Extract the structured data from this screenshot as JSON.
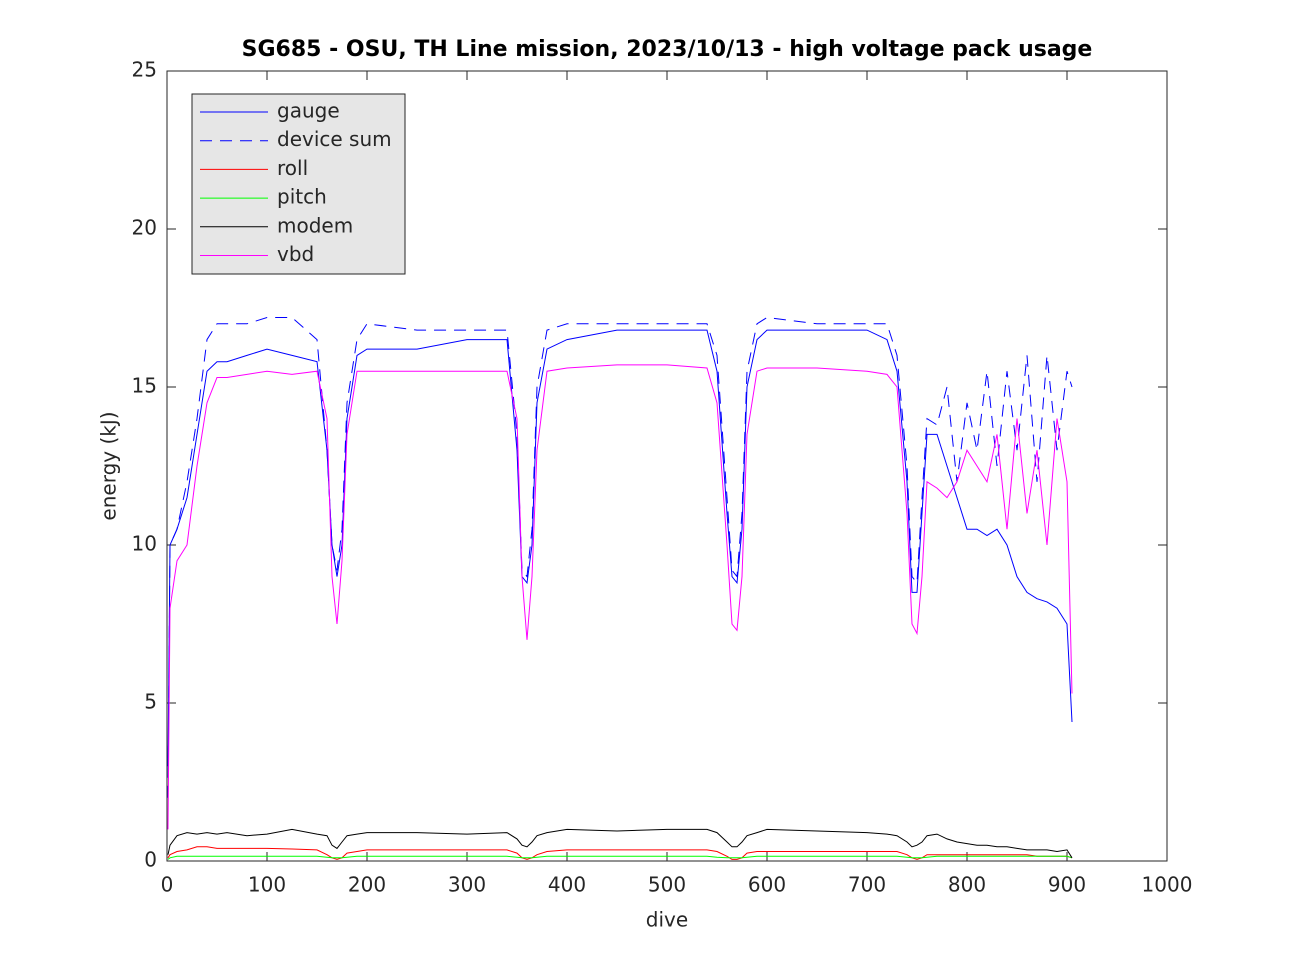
{
  "chart_data": {
    "type": "line",
    "title": "SG685 - OSU, TH Line mission, 2023/10/13 - high voltage pack usage",
    "xlabel": "dive",
    "ylabel": "energy (kJ)",
    "x": [
      1,
      3,
      10,
      20,
      30,
      40,
      50,
      60,
      80,
      100,
      125,
      150,
      160,
      165,
      170,
      175,
      180,
      190,
      200,
      250,
      300,
      340,
      350,
      355,
      360,
      365,
      370,
      380,
      400,
      450,
      500,
      540,
      550,
      560,
      565,
      570,
      575,
      580,
      590,
      600,
      650,
      700,
      720,
      730,
      740,
      745,
      750,
      755,
      760,
      770,
      780,
      790,
      800,
      810,
      820,
      830,
      840,
      850,
      860,
      870,
      880,
      890,
      900,
      905
    ],
    "series": [
      {
        "name": "gauge",
        "color": "#0000ff",
        "dashed": false,
        "values": [
          3,
          10,
          10.5,
          11.5,
          13.5,
          15.5,
          15.8,
          15.8,
          16,
          16.2,
          16,
          15.8,
          13,
          10,
          9,
          10,
          14,
          16,
          16.2,
          16.2,
          16.5,
          16.5,
          13,
          9,
          8.8,
          10,
          14.5,
          16.2,
          16.5,
          16.8,
          16.8,
          16.8,
          15.5,
          11,
          9,
          8.8,
          10.5,
          15,
          16.5,
          16.8,
          16.8,
          16.8,
          16.5,
          15.5,
          12,
          8.5,
          8.5,
          11,
          13.5,
          13.5,
          12.5,
          11.5,
          10.5,
          10.5,
          10.3,
          10.5,
          10,
          9,
          8.5,
          8.3,
          8.2,
          8,
          7.5,
          4.4
        ]
      },
      {
        "name": "device sum",
        "color": "#0000ff",
        "dashed": true,
        "values": [
          2,
          10,
          10.5,
          12,
          14,
          16.5,
          17,
          17,
          17,
          17.2,
          17.2,
          16.5,
          13,
          10,
          9.2,
          10.5,
          14.5,
          16.5,
          17,
          16.8,
          16.8,
          16.8,
          13.5,
          9.2,
          9,
          10.5,
          15,
          16.8,
          17,
          17,
          17,
          17,
          16,
          11.5,
          9.2,
          9,
          11,
          15.5,
          17,
          17.2,
          17,
          17,
          17,
          16,
          12.5,
          9,
          8.8,
          11.5,
          14,
          13.8,
          15,
          12,
          14.5,
          13,
          15.5,
          12.5,
          15.5,
          13,
          16,
          12,
          16,
          13,
          15.5,
          15
        ]
      },
      {
        "name": "roll",
        "color": "#ff0000",
        "dashed": false,
        "values": [
          0.1,
          0.2,
          0.3,
          0.35,
          0.45,
          0.45,
          0.4,
          0.4,
          0.4,
          0.4,
          0.38,
          0.35,
          0.2,
          0.1,
          0.05,
          0.1,
          0.25,
          0.3,
          0.35,
          0.35,
          0.35,
          0.35,
          0.25,
          0.1,
          0.05,
          0.1,
          0.2,
          0.3,
          0.35,
          0.35,
          0.35,
          0.35,
          0.3,
          0.15,
          0.05,
          0.05,
          0.1,
          0.25,
          0.3,
          0.3,
          0.3,
          0.3,
          0.3,
          0.3,
          0.2,
          0.1,
          0.05,
          0.1,
          0.2,
          0.2,
          0.2,
          0.2,
          0.2,
          0.2,
          0.2,
          0.2,
          0.2,
          0.2,
          0.2,
          0.15,
          0.15,
          0.15,
          0.15,
          0.1
        ]
      },
      {
        "name": "pitch",
        "color": "#00ff00",
        "dashed": false,
        "values": [
          0.05,
          0.1,
          0.15,
          0.15,
          0.15,
          0.15,
          0.15,
          0.15,
          0.15,
          0.15,
          0.15,
          0.15,
          0.12,
          0.1,
          0.1,
          0.1,
          0.12,
          0.15,
          0.15,
          0.15,
          0.15,
          0.15,
          0.12,
          0.1,
          0.1,
          0.1,
          0.12,
          0.15,
          0.15,
          0.15,
          0.15,
          0.15,
          0.12,
          0.1,
          0.1,
          0.1,
          0.1,
          0.12,
          0.15,
          0.15,
          0.15,
          0.15,
          0.15,
          0.15,
          0.12,
          0.1,
          0.1,
          0.1,
          0.12,
          0.15,
          0.15,
          0.15,
          0.15,
          0.15,
          0.15,
          0.15,
          0.15,
          0.15,
          0.15,
          0.15,
          0.15,
          0.15,
          0.15,
          0.1
        ]
      },
      {
        "name": "modem",
        "color": "#000000",
        "dashed": false,
        "values": [
          0.2,
          0.5,
          0.8,
          0.9,
          0.85,
          0.9,
          0.85,
          0.9,
          0.8,
          0.85,
          1.0,
          0.85,
          0.8,
          0.5,
          0.4,
          0.6,
          0.8,
          0.85,
          0.9,
          0.9,
          0.85,
          0.9,
          0.7,
          0.5,
          0.45,
          0.6,
          0.8,
          0.9,
          1.0,
          0.95,
          1.0,
          1.0,
          0.9,
          0.6,
          0.45,
          0.45,
          0.6,
          0.8,
          0.9,
          1.0,
          0.95,
          0.9,
          0.85,
          0.8,
          0.6,
          0.45,
          0.5,
          0.6,
          0.8,
          0.85,
          0.7,
          0.6,
          0.55,
          0.5,
          0.5,
          0.45,
          0.45,
          0.4,
          0.35,
          0.35,
          0.35,
          0.3,
          0.35,
          0.1
        ]
      },
      {
        "name": "vbd",
        "color": "#ff00ff",
        "dashed": false,
        "values": [
          1,
          8,
          9.5,
          10,
          12.5,
          14.5,
          15.3,
          15.3,
          15.4,
          15.5,
          15.4,
          15.5,
          14,
          9,
          7.5,
          9.5,
          13.5,
          15.5,
          15.5,
          15.5,
          15.5,
          15.5,
          14,
          9,
          7,
          9,
          13,
          15.5,
          15.6,
          15.7,
          15.7,
          15.6,
          14.5,
          10,
          7.5,
          7.3,
          9,
          13.5,
          15.5,
          15.6,
          15.6,
          15.5,
          15.4,
          15,
          11,
          7.5,
          7.2,
          9,
          12,
          11.8,
          11.5,
          12,
          13,
          12.5,
          12,
          13.5,
          10.5,
          14,
          11,
          13,
          10,
          14,
          12,
          5.3
        ]
      }
    ],
    "xlim": [
      0,
      1000
    ],
    "xticks": [
      0,
      100,
      200,
      300,
      400,
      500,
      600,
      700,
      800,
      900,
      1000
    ],
    "ylim": [
      0,
      25
    ],
    "yticks": [
      0,
      5,
      10,
      15,
      20,
      25
    ],
    "grid": false,
    "legend": "upper left"
  }
}
